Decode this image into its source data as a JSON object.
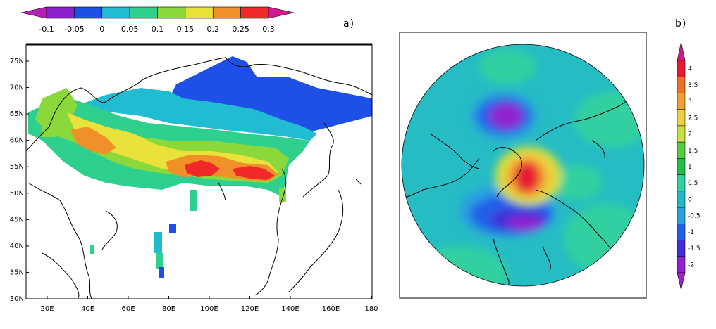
{
  "panel_a": {
    "label": "a)",
    "colorbar_ticks": [
      "-0.1",
      "-0.05",
      "0",
      "0.05",
      "0.1",
      "0.15",
      "0.2",
      "0.25",
      "0.3"
    ],
    "colorbar_colors": [
      "#8a1fd0",
      "#1e4fe6",
      "#22bcd2",
      "#2fd08e",
      "#8ad83a",
      "#e8e23a",
      "#f09028",
      "#f02828"
    ],
    "lat_labels": [
      "75N",
      "70N",
      "65N",
      "60N",
      "55N",
      "50N",
      "45N",
      "40N",
      "35N",
      "30N"
    ],
    "lon_labels": [
      "20E",
      "40E",
      "60E",
      "80E",
      "100E",
      "120E",
      "140E",
      "160E",
      "180"
    ]
  },
  "panel_b": {
    "label": "b)",
    "colorbar_ticks": [
      "4",
      "3.5",
      "3",
      "2.5",
      "2",
      "1.5",
      "1",
      "0.5",
      "0",
      "-0.5",
      "-1",
      "-1.5",
      "-2"
    ],
    "colorbar_colors": [
      "#e81a30",
      "#f07028",
      "#f0a030",
      "#f0d040",
      "#c8e040",
      "#50d040",
      "#20c048",
      "#30d0a0",
      "#22b8c8",
      "#2aa0e0",
      "#2060e8",
      "#4030d8",
      "#9020d0"
    ],
    "tip_top": "#d21a8c",
    "tip_bottom": "#a020d0",
    "ocean_color": "#26bcc4"
  }
}
